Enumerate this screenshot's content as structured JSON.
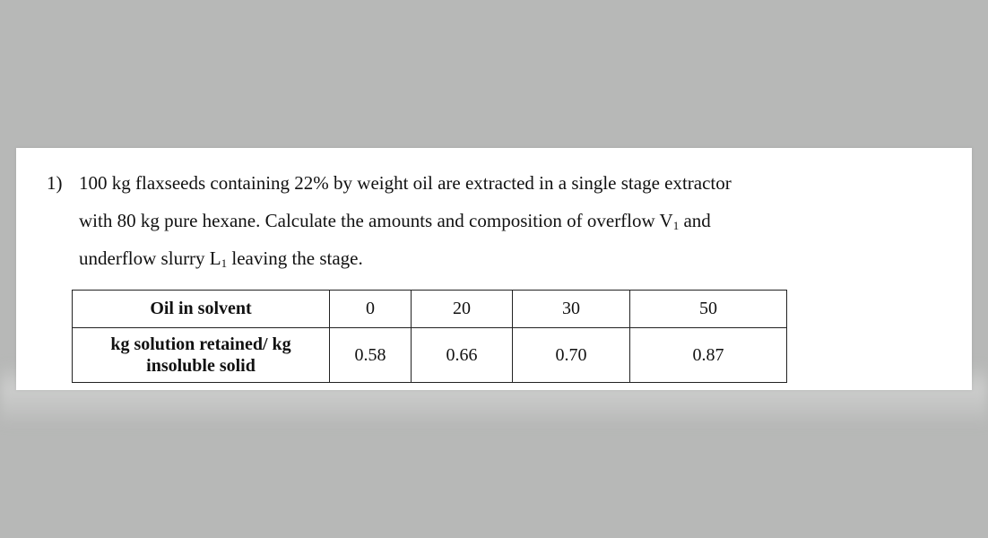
{
  "problem": {
    "number": "1)",
    "line1": "100 kg flaxseeds containing 22% by weight oil are extracted in a single stage extractor",
    "line2_pre": "with 80 kg pure hexane. Calculate the amounts and composition of overflow V",
    "line2_sub": "1",
    "line2_post": " and",
    "line3_pre": "underflow slurry L",
    "line3_sub": "1",
    "line3_post": " leaving the stage."
  },
  "table": {
    "row1": {
      "header": "Oil in solvent",
      "values": [
        "0",
        "20",
        "30",
        "50"
      ]
    },
    "row2": {
      "header_line1": "kg solution retained/ kg",
      "header_line2": "insoluble solid",
      "values": [
        "0.58",
        "0.66",
        "0.70",
        "0.87"
      ]
    }
  }
}
